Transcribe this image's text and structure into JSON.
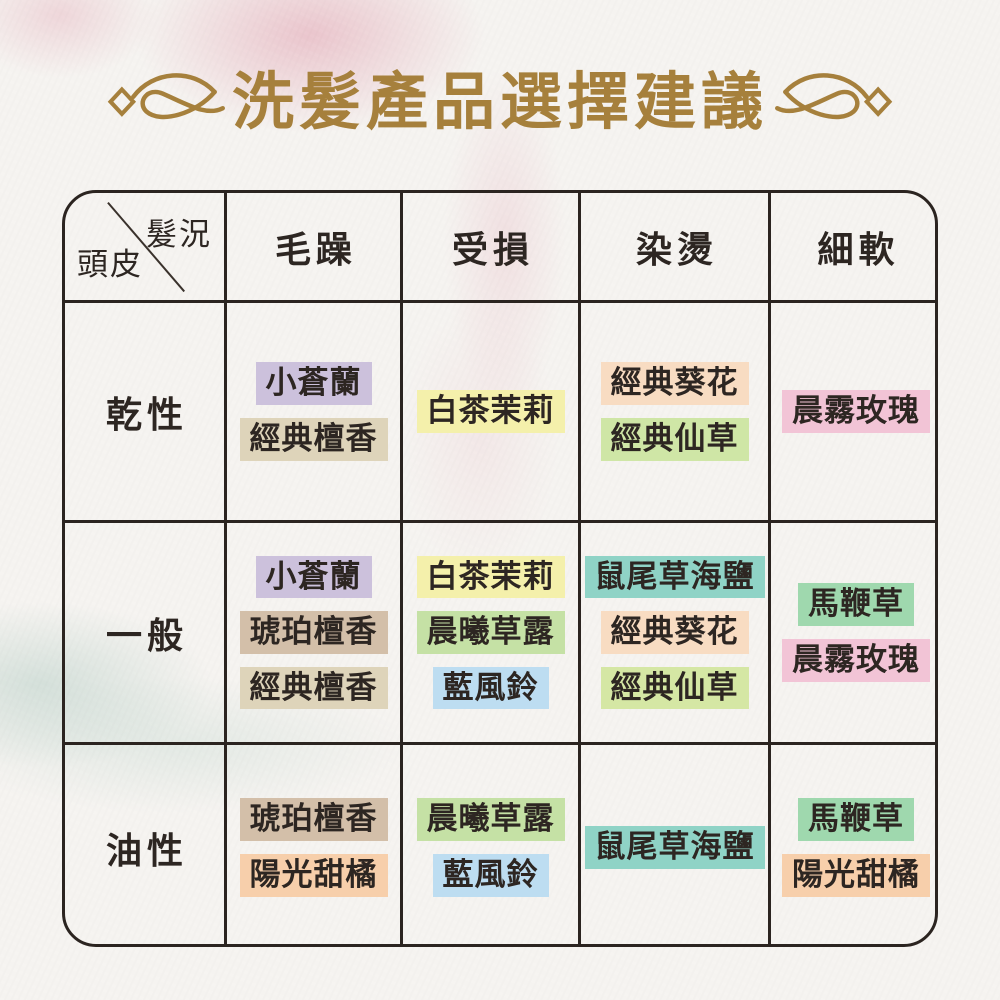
{
  "title": "洗髮產品選擇建議",
  "colors": {
    "title_gold": "#a6803c",
    "table_border": "#2b2420",
    "text": "#2d2622",
    "paper": "#f5f3f0",
    "wash_pink": "#de93a6",
    "wash_teal": "#8db6aa"
  },
  "ornaments": {
    "left": "calligraphy-flourish",
    "right": "calligraphy-flourish-mirrored"
  },
  "table": {
    "corner": {
      "top_right": "髮況",
      "bottom_left": "頭皮"
    },
    "columns": [
      "毛躁",
      "受損",
      "染燙",
      "細軟"
    ],
    "rows": [
      {
        "label": "乾性",
        "cells": [
          [
            {
              "text": "小蒼蘭",
              "color": "#ccc1dc"
            },
            {
              "text": "經典檀香",
              "color": "#ded4ba"
            }
          ],
          [
            {
              "text": "白茶茉莉",
              "color": "#f4f0ab"
            }
          ],
          [
            {
              "text": "經典葵花",
              "color": "#f8dcc2"
            },
            {
              "text": "經典仙草",
              "color": "#cfe6a6"
            }
          ],
          [
            {
              "text": "晨霧玫瑰",
              "color": "#f2c4d6"
            }
          ]
        ]
      },
      {
        "label": "一般",
        "cells": [
          [
            {
              "text": "小蒼蘭",
              "color": "#ccc1dc"
            },
            {
              "text": "琥珀檀香",
              "color": "#d3bfa9"
            },
            {
              "text": "經典檀香",
              "color": "#ded4ba"
            }
          ],
          [
            {
              "text": "白茶茉莉",
              "color": "#f4f0ab"
            },
            {
              "text": "晨曦草露",
              "color": "#c5e1a5"
            },
            {
              "text": "藍風鈴",
              "color": "#bdddf1"
            }
          ],
          [
            {
              "text": "鼠尾草海鹽",
              "color": "#8fd3c6"
            },
            {
              "text": "經典葵花",
              "color": "#f8dcc2"
            },
            {
              "text": "經典仙草",
              "color": "#d5e7a4"
            }
          ],
          [
            {
              "text": "馬鞭草",
              "color": "#9fd8ae"
            },
            {
              "text": "晨霧玫瑰",
              "color": "#f2c4d6"
            }
          ]
        ]
      },
      {
        "label": "油性",
        "cells": [
          [
            {
              "text": "琥珀檀香",
              "color": "#d3bfa9"
            },
            {
              "text": "陽光甜橘",
              "color": "#f7cfab"
            }
          ],
          [
            {
              "text": "晨曦草露",
              "color": "#c5e1a5"
            },
            {
              "text": "藍風鈴",
              "color": "#bdddf1"
            }
          ],
          [
            {
              "text": "鼠尾草海鹽",
              "color": "#8fd3c6"
            }
          ],
          [
            {
              "text": "馬鞭草",
              "color": "#9fd8ae"
            },
            {
              "text": "陽光甜橘",
              "color": "#f7cfab"
            }
          ]
        ]
      }
    ]
  }
}
